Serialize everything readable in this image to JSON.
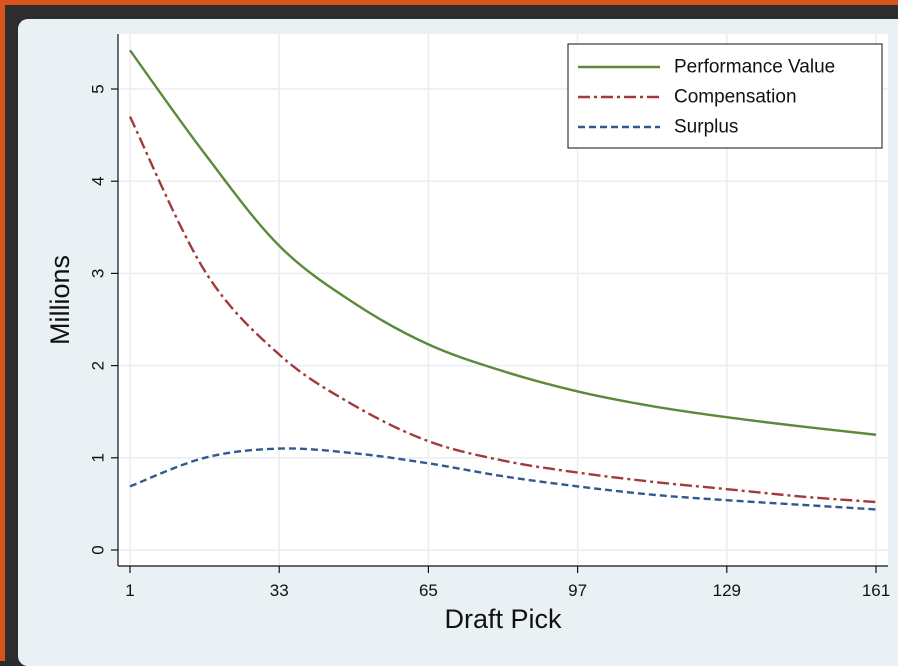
{
  "chart_data": {
    "type": "line",
    "title": "",
    "xlabel": "Draft Pick",
    "ylabel": "Millions",
    "xlim": [
      1,
      161
    ],
    "ylim": [
      0,
      5.5
    ],
    "x_ticks": [
      1,
      33,
      65,
      97,
      129,
      161
    ],
    "x_tick_labels": [
      "1",
      "33",
      "65",
      "97",
      "129",
      "161"
    ],
    "y_ticks": [
      0,
      1,
      2,
      3,
      4,
      5
    ],
    "y_tick_labels": [
      "0",
      "1",
      "2",
      "3",
      "4",
      "5"
    ],
    "grid": true,
    "legend_position": "top-right",
    "series": [
      {
        "name": "Performance Value",
        "color": "#5a8a3a",
        "style": "solid",
        "x": [
          1,
          17,
          33,
          49,
          65,
          81,
          97,
          113,
          129,
          145,
          161
        ],
        "values": [
          5.42,
          4.3,
          3.3,
          2.68,
          2.23,
          1.94,
          1.72,
          1.56,
          1.44,
          1.34,
          1.25
        ]
      },
      {
        "name": "Compensation",
        "color": "#a33a3a",
        "style": "dashdot",
        "x": [
          1,
          17,
          33,
          49,
          65,
          81,
          97,
          113,
          129,
          145,
          161
        ],
        "values": [
          4.7,
          3.03,
          2.12,
          1.57,
          1.18,
          0.97,
          0.84,
          0.74,
          0.66,
          0.58,
          0.52
        ]
      },
      {
        "name": "Surplus",
        "color": "#2e5a8e",
        "style": "dash",
        "x": [
          1,
          17,
          33,
          49,
          65,
          81,
          97,
          113,
          129,
          145,
          161
        ],
        "values": [
          0.69,
          1.0,
          1.1,
          1.05,
          0.94,
          0.8,
          0.69,
          0.6,
          0.54,
          0.49,
          0.44
        ]
      }
    ]
  }
}
